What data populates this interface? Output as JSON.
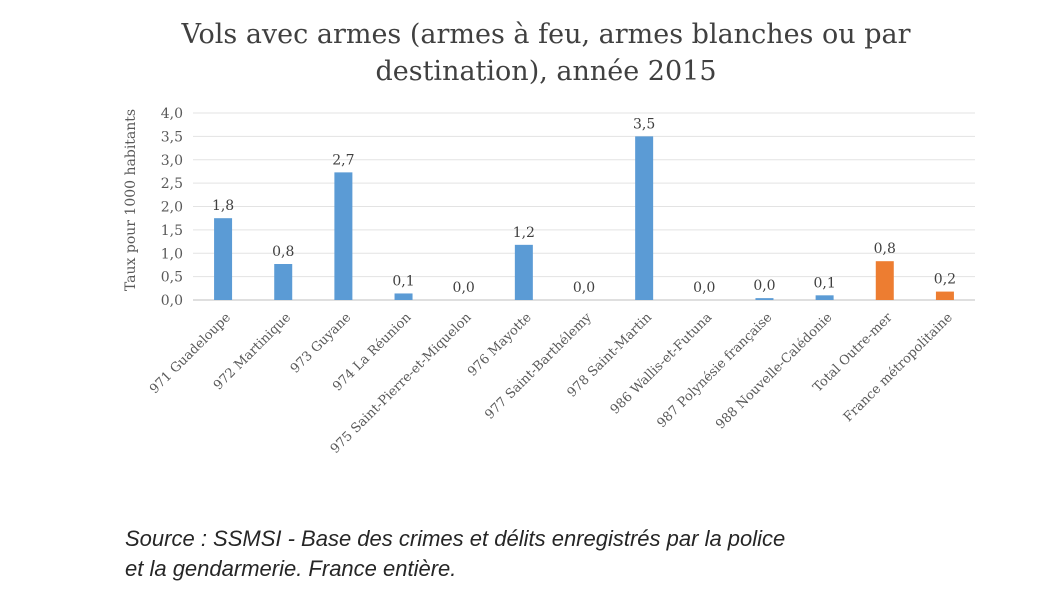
{
  "chart_data": {
    "type": "bar",
    "title_lines": [
      "Vols avec armes (armes à feu, armes blanches ou par",
      "destination), année 2015"
    ],
    "ylabel": "Taux pour 1000 habitants",
    "ylim": [
      0,
      4
    ],
    "yticks": [
      "4,0",
      "3,5",
      "3,0",
      "2,5",
      "2,0",
      "1,5",
      "1,0",
      "0,5",
      "0,0"
    ],
    "grid": true,
    "categories": [
      "971 Guadeloupe",
      "972 Martinique",
      "973 Guyane",
      "974 La Réunion",
      "975 Saint-Pierre-et-Miquelon",
      "976 Mayotte",
      "977 Saint-Barthélemy",
      "978 Saint-Martin",
      "986 Wallis-et-Futuna",
      "987 Polynésie française",
      "988 Nouvelle-Calédonie",
      "Total Outre-mer",
      "France métropolitaine"
    ],
    "values": [
      1.75,
      0.77,
      2.73,
      0.14,
      0.0,
      1.18,
      0.0,
      3.5,
      0.0,
      0.04,
      0.1,
      0.83,
      0.18
    ],
    "data_labels": [
      "1,8",
      "0,8",
      "2,7",
      "0,1",
      "0,0",
      "1,2",
      "0,0",
      "3,5",
      "0,0",
      "0,0",
      "0,1",
      "0,8",
      "0,2"
    ],
    "colors": [
      "#5b9bd5",
      "#5b9bd5",
      "#5b9bd5",
      "#5b9bd5",
      "#5b9bd5",
      "#5b9bd5",
      "#5b9bd5",
      "#5b9bd5",
      "#5b9bd5",
      "#5b9bd5",
      "#5b9bd5",
      "#ed7d31",
      "#ed7d31"
    ]
  },
  "source_note": "Source : SSMSI - Base des crimes et délits enregistrés par la police\n  et la gendarmerie. France entière."
}
